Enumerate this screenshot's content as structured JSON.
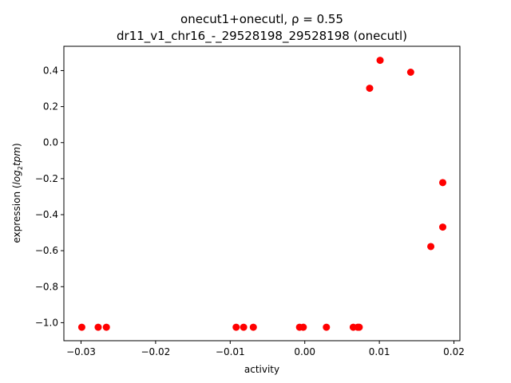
{
  "chart_data": {
    "type": "scatter",
    "title_line1": "onecut1+onecutl, ρ = 0.55",
    "title_line2": "dr11_v1_chr16_-_29528198_29528198 (onecutl)",
    "xlabel": "activity",
    "ylabel_main": "expression (",
    "ylabel_log": "log",
    "ylabel_sub": "2",
    "ylabel_tpm": "tpm",
    "ylabel_close": ")",
    "xlim": [
      -0.0323,
      0.0208
    ],
    "ylim": [
      -1.1,
      0.535
    ],
    "xticks": [
      -0.03,
      -0.02,
      -0.01,
      0.0,
      0.01,
      0.02
    ],
    "xtick_labels": [
      "−0.03",
      "−0.02",
      "−0.01",
      "0.00",
      "0.01",
      "0.02"
    ],
    "yticks": [
      0.4,
      0.2,
      0.0,
      -0.2,
      -0.4,
      -0.6,
      -0.8,
      -1.0
    ],
    "ytick_labels": [
      "0.4",
      "0.2",
      "0.0",
      "−0.2",
      "−0.4",
      "−0.6",
      "−0.8",
      "−1.0"
    ],
    "marker_color": "#ff0000",
    "grid": false,
    "points": [
      {
        "x": -0.0299,
        "y": -1.025
      },
      {
        "x": -0.0277,
        "y": -1.025
      },
      {
        "x": -0.0266,
        "y": -1.025
      },
      {
        "x": -0.0092,
        "y": -1.025
      },
      {
        "x": -0.0082,
        "y": -1.025
      },
      {
        "x": -0.0069,
        "y": -1.025
      },
      {
        "x": -0.0007,
        "y": -1.025
      },
      {
        "x": -0.0002,
        "y": -1.025
      },
      {
        "x": 0.0029,
        "y": -1.025
      },
      {
        "x": 0.0065,
        "y": -1.025
      },
      {
        "x": 0.0071,
        "y": -1.025
      },
      {
        "x": 0.0073,
        "y": -1.025
      },
      {
        "x": 0.0087,
        "y": 0.302
      },
      {
        "x": 0.0101,
        "y": 0.457
      },
      {
        "x": 0.0142,
        "y": 0.391
      },
      {
        "x": 0.0169,
        "y": -0.577
      },
      {
        "x": 0.0185,
        "y": -0.222
      },
      {
        "x": 0.0185,
        "y": -0.469
      }
    ]
  }
}
